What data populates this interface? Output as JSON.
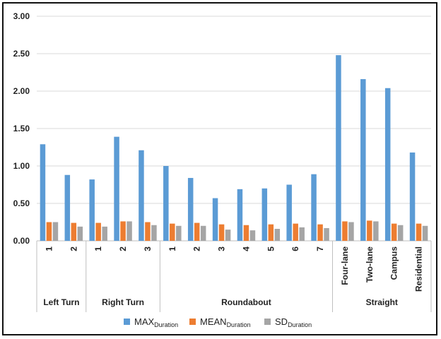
{
  "chart_data": {
    "type": "bar",
    "title": "",
    "xlabel": "",
    "ylabel": "",
    "ylim": [
      0,
      3
    ],
    "y_ticks": [
      "0.00",
      "0.50",
      "1.00",
      "1.50",
      "2.00",
      "2.50",
      "3.00"
    ],
    "grid": true,
    "legend_position": "bottom",
    "groups": [
      {
        "name": "Left Turn",
        "categories": [
          "1",
          "2"
        ]
      },
      {
        "name": "Right Turn",
        "categories": [
          "1",
          "2",
          "3"
        ]
      },
      {
        "name": "Roundabout",
        "categories": [
          "1",
          "2",
          "3",
          "4",
          "5",
          "6",
          "7"
        ]
      },
      {
        "name": "Straight",
        "categories": [
          "Four-lane",
          "Two-lane",
          "Campus",
          "Residential"
        ]
      }
    ],
    "series": [
      {
        "name": "MAX",
        "name_sub": "Duration",
        "color": "#5B9BD5",
        "values": [
          1.29,
          0.88,
          0.82,
          1.39,
          1.21,
          1.0,
          0.84,
          0.57,
          0.69,
          0.7,
          0.75,
          0.89,
          2.48,
          2.16,
          2.04,
          1.18
        ]
      },
      {
        "name": "MEAN",
        "name_sub": "Duration",
        "color": "#ED7D31",
        "values": [
          0.25,
          0.24,
          0.24,
          0.26,
          0.25,
          0.23,
          0.24,
          0.22,
          0.21,
          0.22,
          0.23,
          0.22,
          0.26,
          0.27,
          0.23,
          0.23
        ]
      },
      {
        "name": "SD",
        "name_sub": "Duration",
        "color": "#A5A5A5",
        "values": [
          0.25,
          0.19,
          0.19,
          0.26,
          0.21,
          0.2,
          0.2,
          0.15,
          0.14,
          0.16,
          0.18,
          0.17,
          0.25,
          0.26,
          0.21,
          0.2
        ]
      }
    ]
  }
}
